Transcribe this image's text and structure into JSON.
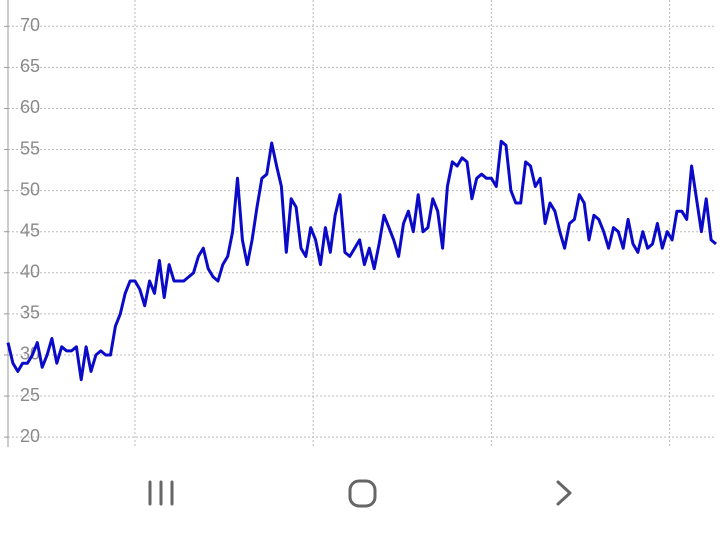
{
  "chart_data": {
    "type": "line",
    "color": "#0a0ac8",
    "values": [
      31.5,
      29,
      28,
      29,
      29,
      30,
      31.5,
      28.5,
      30,
      32,
      29,
      31,
      30.5,
      30.5,
      31,
      27,
      31,
      28,
      30,
      30.5,
      30,
      30,
      33.5,
      35,
      37.5,
      39,
      39,
      38,
      36,
      39,
      37.5,
      41.5,
      37,
      41,
      39,
      39,
      39,
      39.5,
      40,
      42,
      43,
      40.5,
      39.5,
      39,
      41,
      42,
      45,
      51.5,
      44,
      41,
      44,
      48,
      51.5,
      52,
      55.8,
      53,
      50.5,
      42.5,
      49,
      48,
      43,
      42,
      45.5,
      44,
      41,
      45.5,
      42.5,
      47,
      49.5,
      42.5,
      42,
      43,
      44,
      41,
      43,
      40.5,
      43.5,
      47,
      45.5,
      44,
      42,
      46,
      47.5,
      45,
      49.5,
      45,
      45.5,
      49,
      47.5,
      43,
      50.5,
      53.5,
      53,
      54,
      53.5,
      49,
      51.5,
      52,
      51.5,
      51.5,
      50.5,
      56,
      55.5,
      50,
      48.5,
      48.5,
      53.5,
      53,
      50.5,
      51.5,
      46,
      48.5,
      47.5,
      45,
      43,
      46,
      46.5,
      49.5,
      48.5,
      44,
      47,
      46.5,
      45,
      43,
      45.5,
      45,
      43,
      46.5,
      43.5,
      42.5,
      45,
      43,
      43.5,
      46,
      43,
      45,
      44,
      47.5,
      47.5,
      46.5,
      53,
      49,
      45,
      49,
      44,
      43.5
    ],
    "xlim": [
      0,
      145
    ],
    "xticks": [
      26,
      62.5,
      99,
      135.5
    ],
    "ylim": [
      18.8,
      73.2
    ],
    "yticks": [
      20,
      25,
      30,
      35,
      40,
      45,
      50,
      55,
      60,
      65,
      70
    ],
    "grid": true
  }
}
